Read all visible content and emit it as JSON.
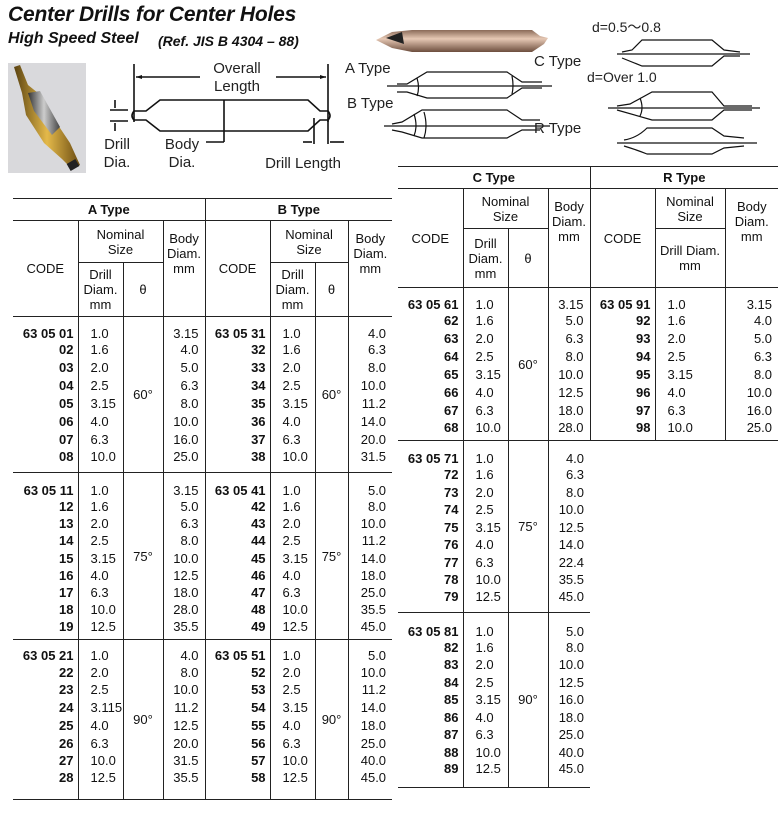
{
  "header": {
    "title": "Center Drills for Center Holes",
    "subtitle": "High Speed Steel",
    "reference": "(Ref. JIS B 4304 – 88)"
  },
  "diagram": {
    "overall_length": "Overall Length",
    "drill_dia": "Drill Dia.",
    "body_dia": "Body Dia.",
    "drill_length": "Drill Length",
    "a_type": "A Type",
    "b_type": "B Type",
    "c_type": "C Type",
    "r_type": "R Type",
    "c_note_small": "d=0.5～0.8",
    "c_note_large": "d=Over  1.0"
  },
  "columns": {
    "code": "CODE",
    "nominal_size": "Nominal Size",
    "drill_diam": "Drill Diam. mm",
    "theta": "θ",
    "body_diam": "Body Diam. mm"
  },
  "tables": [
    {
      "sections": [
        {
          "title": "A Type",
          "groups": [
            {
              "angle": "60°",
              "rows": [
                [
                  "63 05 01",
                  "1.0",
                  "3.15"
                ],
                [
                  "02",
                  "1.6",
                  "4.0"
                ],
                [
                  "03",
                  "2.0",
                  "5.0"
                ],
                [
                  "04",
                  "2.5",
                  "6.3"
                ],
                [
                  "05",
                  "3.15",
                  "8.0"
                ],
                [
                  "06",
                  "4.0",
                  "10.0"
                ],
                [
                  "07",
                  "6.3",
                  "16.0"
                ],
                [
                  "08",
                  "10.0",
                  "25.0"
                ]
              ]
            },
            {
              "angle": "75°",
              "rows": [
                [
                  "63 05 11",
                  "1.0",
                  "3.15"
                ],
                [
                  "12",
                  "1.6",
                  "5.0"
                ],
                [
                  "13",
                  "2.0",
                  "6.3"
                ],
                [
                  "14",
                  "2.5",
                  "8.0"
                ],
                [
                  "15",
                  "3.15",
                  "10.0"
                ],
                [
                  "16",
                  "4.0",
                  "12.5"
                ],
                [
                  "17",
                  "6.3",
                  "18.0"
                ],
                [
                  "18",
                  "10.0",
                  "28.0"
                ],
                [
                  "19",
                  "12.5",
                  "35.5"
                ]
              ]
            },
            {
              "angle": "90°",
              "rows": [
                [
                  "63 05 21",
                  "1.0",
                  "4.0"
                ],
                [
                  "22",
                  "2.0",
                  "8.0"
                ],
                [
                  "23",
                  "2.5",
                  "10.0"
                ],
                [
                  "24",
                  "3.115",
                  "11.2"
                ],
                [
                  "25",
                  "4.0",
                  "12.5"
                ],
                [
                  "26",
                  "6.3",
                  "20.0"
                ],
                [
                  "27",
                  "10.0",
                  "31.5"
                ],
                [
                  "28",
                  "12.5",
                  "35.5"
                ]
              ]
            }
          ]
        },
        {
          "title": "B Type",
          "groups": [
            {
              "angle": "60°",
              "rows": [
                [
                  "63 05 31",
                  "1.0",
                  "4.0"
                ],
                [
                  "32",
                  "1.6",
                  "6.3"
                ],
                [
                  "33",
                  "2.0",
                  "8.0"
                ],
                [
                  "34",
                  "2.5",
                  "10.0"
                ],
                [
                  "35",
                  "3.15",
                  "11.2"
                ],
                [
                  "36",
                  "4.0",
                  "14.0"
                ],
                [
                  "37",
                  "6.3",
                  "20.0"
                ],
                [
                  "38",
                  "10.0",
                  "31.5"
                ]
              ]
            },
            {
              "angle": "75°",
              "rows": [
                [
                  "63 05 41",
                  "1.0",
                  "5.0"
                ],
                [
                  "42",
                  "1.6",
                  "8.0"
                ],
                [
                  "43",
                  "2.0",
                  "10.0"
                ],
                [
                  "44",
                  "2.5",
                  "11.2"
                ],
                [
                  "45",
                  "3.15",
                  "14.0"
                ],
                [
                  "46",
                  "4.0",
                  "18.0"
                ],
                [
                  "47",
                  "6.3",
                  "25.0"
                ],
                [
                  "48",
                  "10.0",
                  "35.5"
                ],
                [
                  "49",
                  "12.5",
                  "45.0"
                ]
              ]
            },
            {
              "angle": "90°",
              "rows": [
                [
                  "63 05 51",
                  "1.0",
                  "5.0"
                ],
                [
                  "52",
                  "2.0",
                  "10.0"
                ],
                [
                  "53",
                  "2.5",
                  "11.2"
                ],
                [
                  "54",
                  "3.15",
                  "14.0"
                ],
                [
                  "55",
                  "4.0",
                  "18.0"
                ],
                [
                  "56",
                  "6.3",
                  "25.0"
                ],
                [
                  "57",
                  "10.0",
                  "40.0"
                ],
                [
                  "58",
                  "12.5",
                  "45.0"
                ]
              ]
            }
          ]
        }
      ]
    },
    {
      "sections": [
        {
          "title": "C Type",
          "groups": [
            {
              "angle": "60°",
              "rows": [
                [
                  "63 05 61",
                  "1.0",
                  "3.15"
                ],
                [
                  "62",
                  "1.6",
                  "5.0"
                ],
                [
                  "63",
                  "2.0",
                  "6.3"
                ],
                [
                  "64",
                  "2.5",
                  "8.0"
                ],
                [
                  "65",
                  "3.15",
                  "10.0"
                ],
                [
                  "66",
                  "4.0",
                  "12.5"
                ],
                [
                  "67",
                  "6.3",
                  "18.0"
                ],
                [
                  "68",
                  "10.0",
                  "28.0"
                ]
              ]
            },
            {
              "angle": "75°",
              "rows": [
                [
                  "63 05 71",
                  "1.0",
                  "4.0"
                ],
                [
                  "72",
                  "1.6",
                  "6.3"
                ],
                [
                  "73",
                  "2.0",
                  "8.0"
                ],
                [
                  "74",
                  "2.5",
                  "10.0"
                ],
                [
                  "75",
                  "3.15",
                  "12.5"
                ],
                [
                  "76",
                  "4.0",
                  "14.0"
                ],
                [
                  "77",
                  "6.3",
                  "22.4"
                ],
                [
                  "78",
                  "10.0",
                  "35.5"
                ],
                [
                  "79",
                  "12.5",
                  "45.0"
                ]
              ]
            },
            {
              "angle": "90°",
              "rows": [
                [
                  "63 05 81",
                  "1.0",
                  "5.0"
                ],
                [
                  "82",
                  "1.6",
                  "8.0"
                ],
                [
                  "83",
                  "2.0",
                  "10.0"
                ],
                [
                  "84",
                  "2.5",
                  "12.5"
                ],
                [
                  "85",
                  "3.15",
                  "16.0"
                ],
                [
                  "86",
                  "4.0",
                  "18.0"
                ],
                [
                  "87",
                  "6.3",
                  "25.0"
                ],
                [
                  "88",
                  "10.0",
                  "40.0"
                ],
                [
                  "89",
                  "12.5",
                  "45.0"
                ]
              ]
            }
          ]
        },
        {
          "title": "R Type",
          "groups": [
            {
              "rows": [
                [
                  "63 05 91",
                  "1.0",
                  "3.15"
                ],
                [
                  "92",
                  "1.6",
                  "4.0"
                ],
                [
                  "93",
                  "2.0",
                  "5.0"
                ],
                [
                  "94",
                  "2.5",
                  "6.3"
                ],
                [
                  "95",
                  "3.15",
                  "8.0"
                ],
                [
                  "96",
                  "4.0",
                  "10.0"
                ],
                [
                  "97",
                  "6.3",
                  "16.0"
                ],
                [
                  "98",
                  "10.0",
                  "25.0"
                ]
              ]
            }
          ]
        }
      ]
    }
  ]
}
